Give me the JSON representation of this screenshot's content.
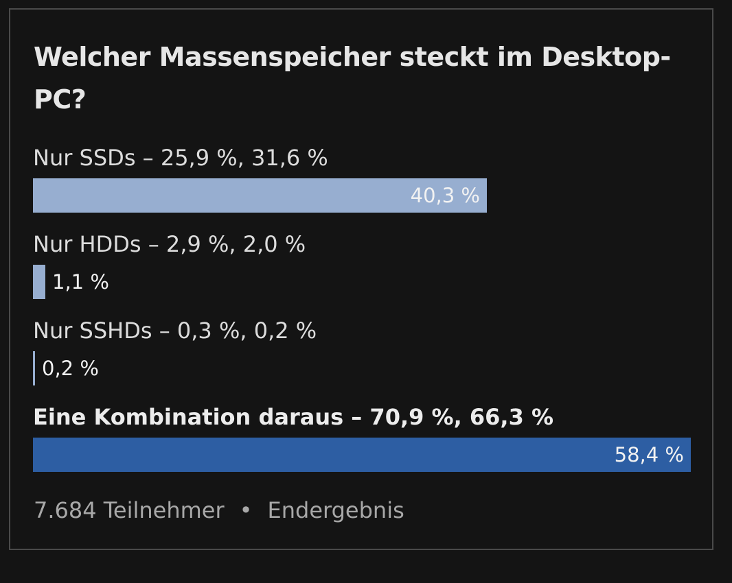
{
  "poll": {
    "title": "Welcher Massenspeicher steckt im Desktop-PC?",
    "options": [
      {
        "label": "Nur SSDs – 25,9 %, 31,6 %",
        "value_label": "40,3 %",
        "fraction": 0.403
      },
      {
        "label": "Nur HDDs – 2,9 %, 2,0 %",
        "value_label": "1,1 %",
        "fraction": 0.011
      },
      {
        "label": "Nur SSHDs – 0,3 %, 0,2 %",
        "value_label": "0,2 %",
        "fraction": 0.002
      },
      {
        "label": "Eine Kombination daraus – 70,9 %, 66,3 %",
        "value_label": "58,4 %",
        "fraction": 0.584,
        "selected": true
      }
    ],
    "footer": {
      "participants": "7.684 Teilnehmer",
      "separator": "•",
      "status": "Endergebnis"
    },
    "colors": {
      "bar": "#97aed0",
      "bar_selected": "#2d5ea3",
      "background": "#141414"
    }
  }
}
